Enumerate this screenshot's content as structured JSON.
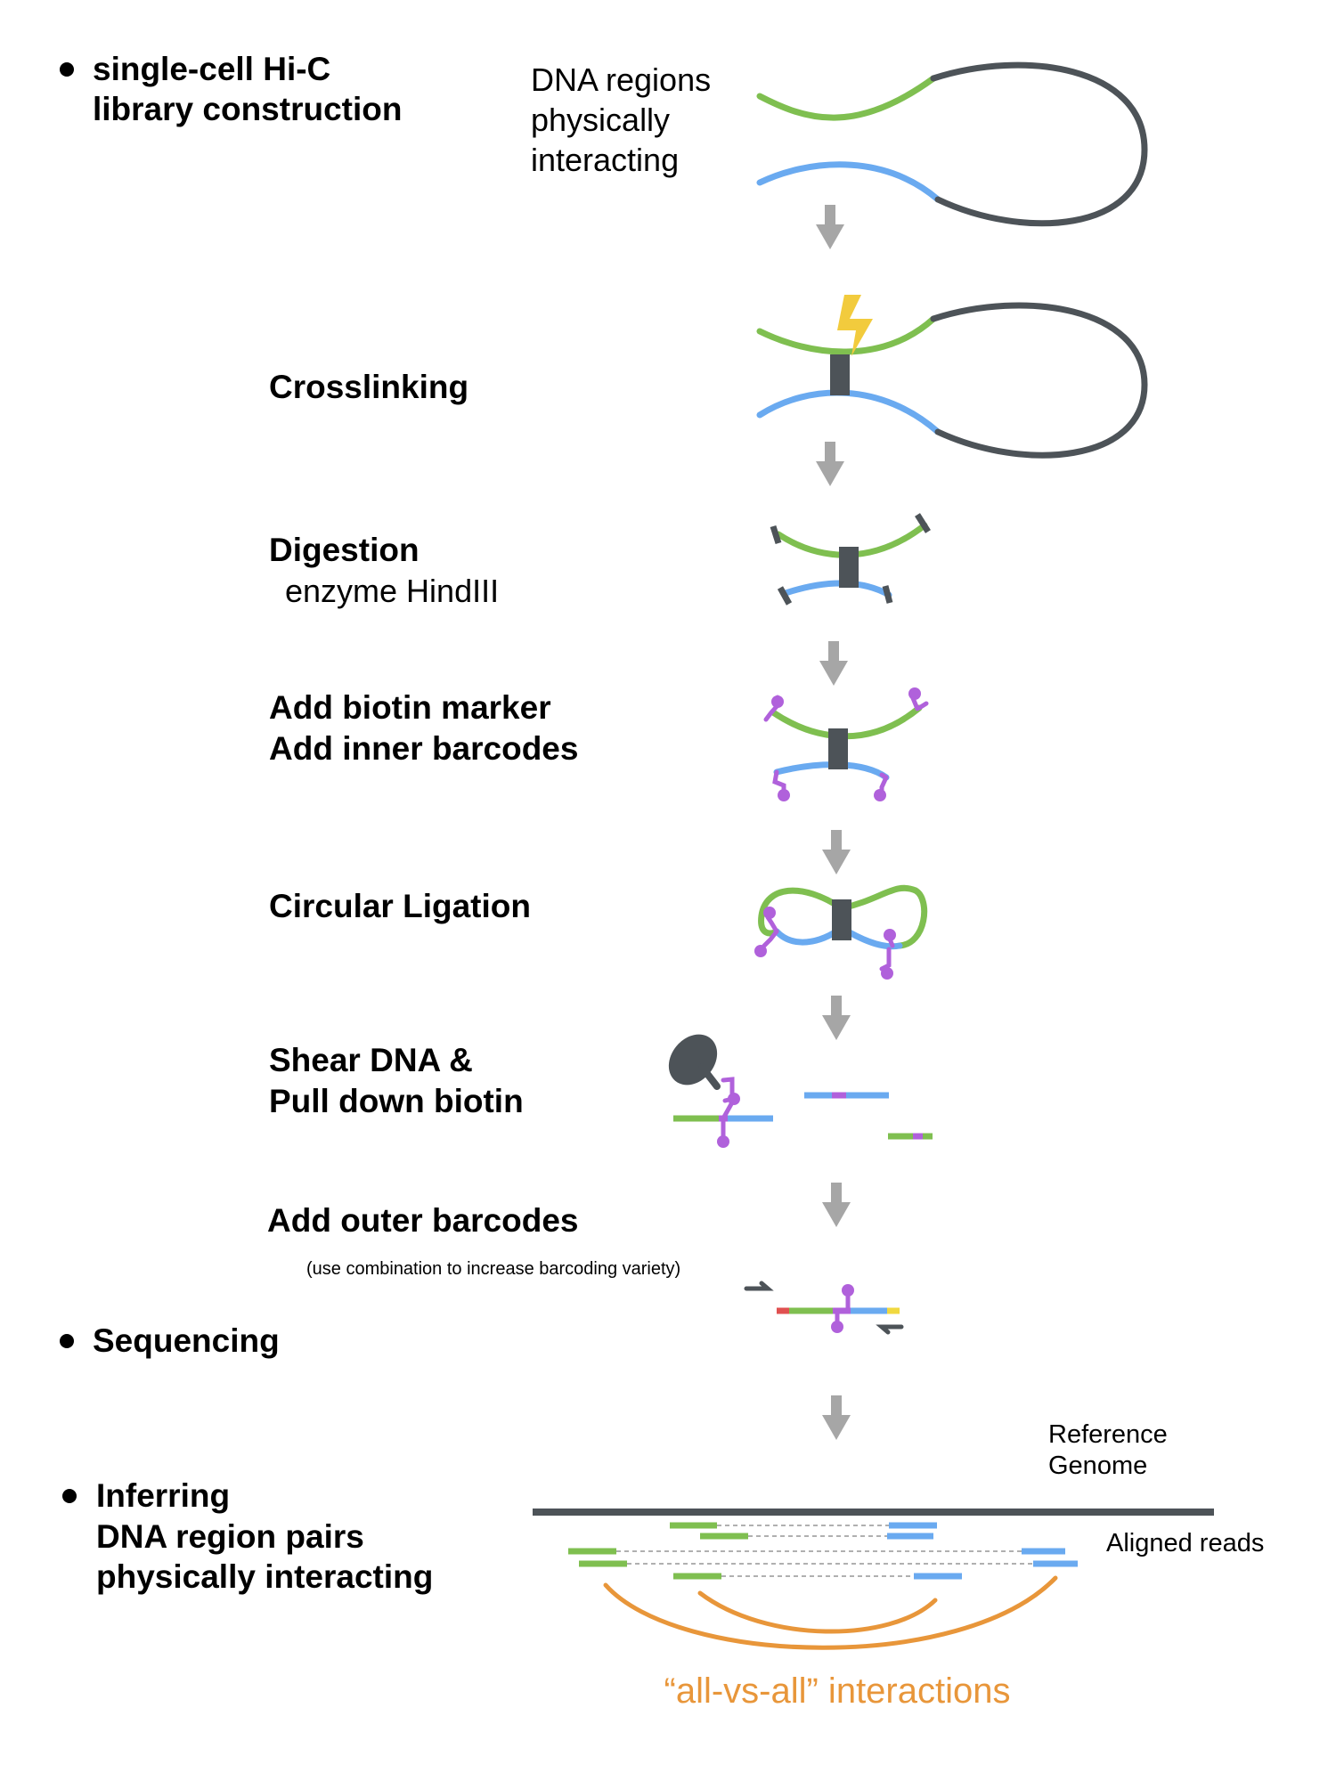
{
  "colors": {
    "green": "#7fbf50",
    "blue": "#6aaaf0",
    "dark": "#4d5358",
    "purple": "#b061db",
    "orange": "#e8963a",
    "arrow": "#a6a6a6",
    "bolt": "#f2cb3d",
    "red": "#e05050",
    "yellow": "#f0d840"
  },
  "sections": {
    "library": [
      "single-cell Hi-C",
      "library construction"
    ],
    "sequencing": "Sequencing",
    "inferring": [
      "Inferring",
      "DNA region pairs",
      "physically interacting"
    ]
  },
  "intro_label": [
    "DNA regions",
    "physically",
    "interacting"
  ],
  "steps": {
    "crosslinking": "Crosslinking",
    "digestion": {
      "title": "Digestion",
      "detail": "enzyme HindIII"
    },
    "biotin": [
      "Add biotin marker",
      "Add inner barcodes"
    ],
    "ligation": "Circular Ligation",
    "shear": [
      "Shear DNA &",
      "Pull down biotin"
    ],
    "outer": {
      "title": "Add outer barcodes",
      "note": "(use combination to increase barcoding variety)"
    }
  },
  "alignment": {
    "reference": [
      "Reference",
      "Genome"
    ],
    "aligned_reads": "Aligned reads",
    "interactions": "“all-vs-all” interactions"
  }
}
